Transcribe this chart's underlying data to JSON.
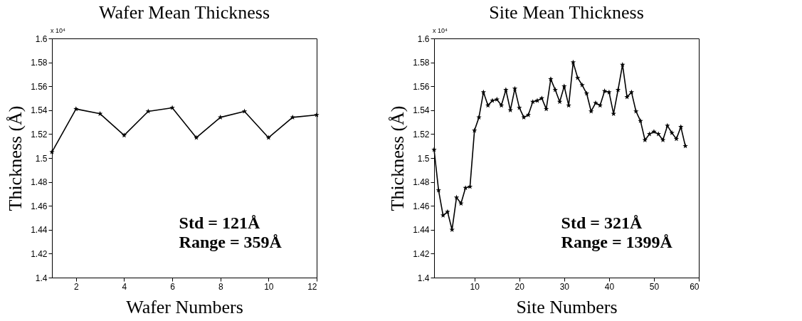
{
  "chart_data": [
    {
      "type": "line",
      "title": "Wafer Mean Thickness",
      "xlabel": "Wafer Numbers",
      "ylabel": "Thickness (Å)",
      "x": [
        1,
        2,
        3,
        4,
        5,
        6,
        7,
        8,
        9,
        10,
        11,
        12
      ],
      "series": [
        {
          "color": "#000000",
          "values": [
            1.505,
            1.541,
            1.537,
            1.519,
            1.539,
            1.542,
            1.517,
            1.534,
            1.539,
            1.517,
            1.534,
            1.536
          ]
        }
      ],
      "xlim": [
        1,
        12
      ],
      "xticks": [
        2,
        4,
        6,
        8,
        10,
        12
      ],
      "ylim": [
        1.4,
        1.6
      ],
      "yticks": [
        1.4,
        1.42,
        1.44,
        1.46,
        1.48,
        1.5,
        1.52,
        1.54,
        1.56,
        1.58,
        1.6
      ],
      "grid": false,
      "marker": "star",
      "line_style": "solid",
      "annotations": [
        "x 10⁴",
        "Std = 121Å",
        "Range = 359Å"
      ]
    },
    {
      "type": "line",
      "title": "Site Mean Thickness",
      "xlabel": "Site Numbers",
      "ylabel": "Thickness (Å)",
      "x": [
        1,
        2,
        3,
        4,
        5,
        6,
        7,
        8,
        9,
        10,
        11,
        12,
        13,
        14,
        15,
        16,
        17,
        18,
        19,
        20,
        21,
        22,
        23,
        24,
        25,
        26,
        27,
        28,
        29,
        30,
        31,
        32,
        33,
        34,
        35,
        36,
        37,
        38,
        39,
        40,
        41,
        42,
        43,
        44,
        45,
        46,
        47,
        48,
        49,
        50,
        51,
        52,
        53,
        54,
        55,
        56,
        57
      ],
      "series": [
        {
          "color": "#000000",
          "values": [
            1.507,
            1.473,
            1.452,
            1.455,
            1.44,
            1.467,
            1.462,
            1.475,
            1.476,
            1.523,
            1.534,
            1.555,
            1.544,
            1.548,
            1.549,
            1.544,
            1.557,
            1.54,
            1.558,
            1.542,
            1.534,
            1.536,
            1.547,
            1.548,
            1.55,
            1.541,
            1.566,
            1.557,
            1.547,
            1.56,
            1.544,
            1.58,
            1.567,
            1.561,
            1.554,
            1.539,
            1.546,
            1.544,
            1.556,
            1.555,
            1.537,
            1.557,
            1.578,
            1.551,
            1.555,
            1.539,
            1.531,
            1.515,
            1.52,
            1.522,
            1.52,
            1.515,
            1.527,
            1.521,
            1.516,
            1.526,
            1.51
          ]
        }
      ],
      "xlim": [
        1,
        60
      ],
      "xticks": [
        10,
        20,
        30,
        40,
        50,
        60
      ],
      "ylim": [
        1.4,
        1.6
      ],
      "yticks": [
        1.4,
        1.42,
        1.44,
        1.46,
        1.48,
        1.5,
        1.52,
        1.54,
        1.56,
        1.58,
        1.6
      ],
      "grid": false,
      "marker": "star",
      "line_style": "solid",
      "annotations": [
        "x 10⁴",
        "Std = 321Å",
        "Range = 1399Å"
      ]
    }
  ]
}
